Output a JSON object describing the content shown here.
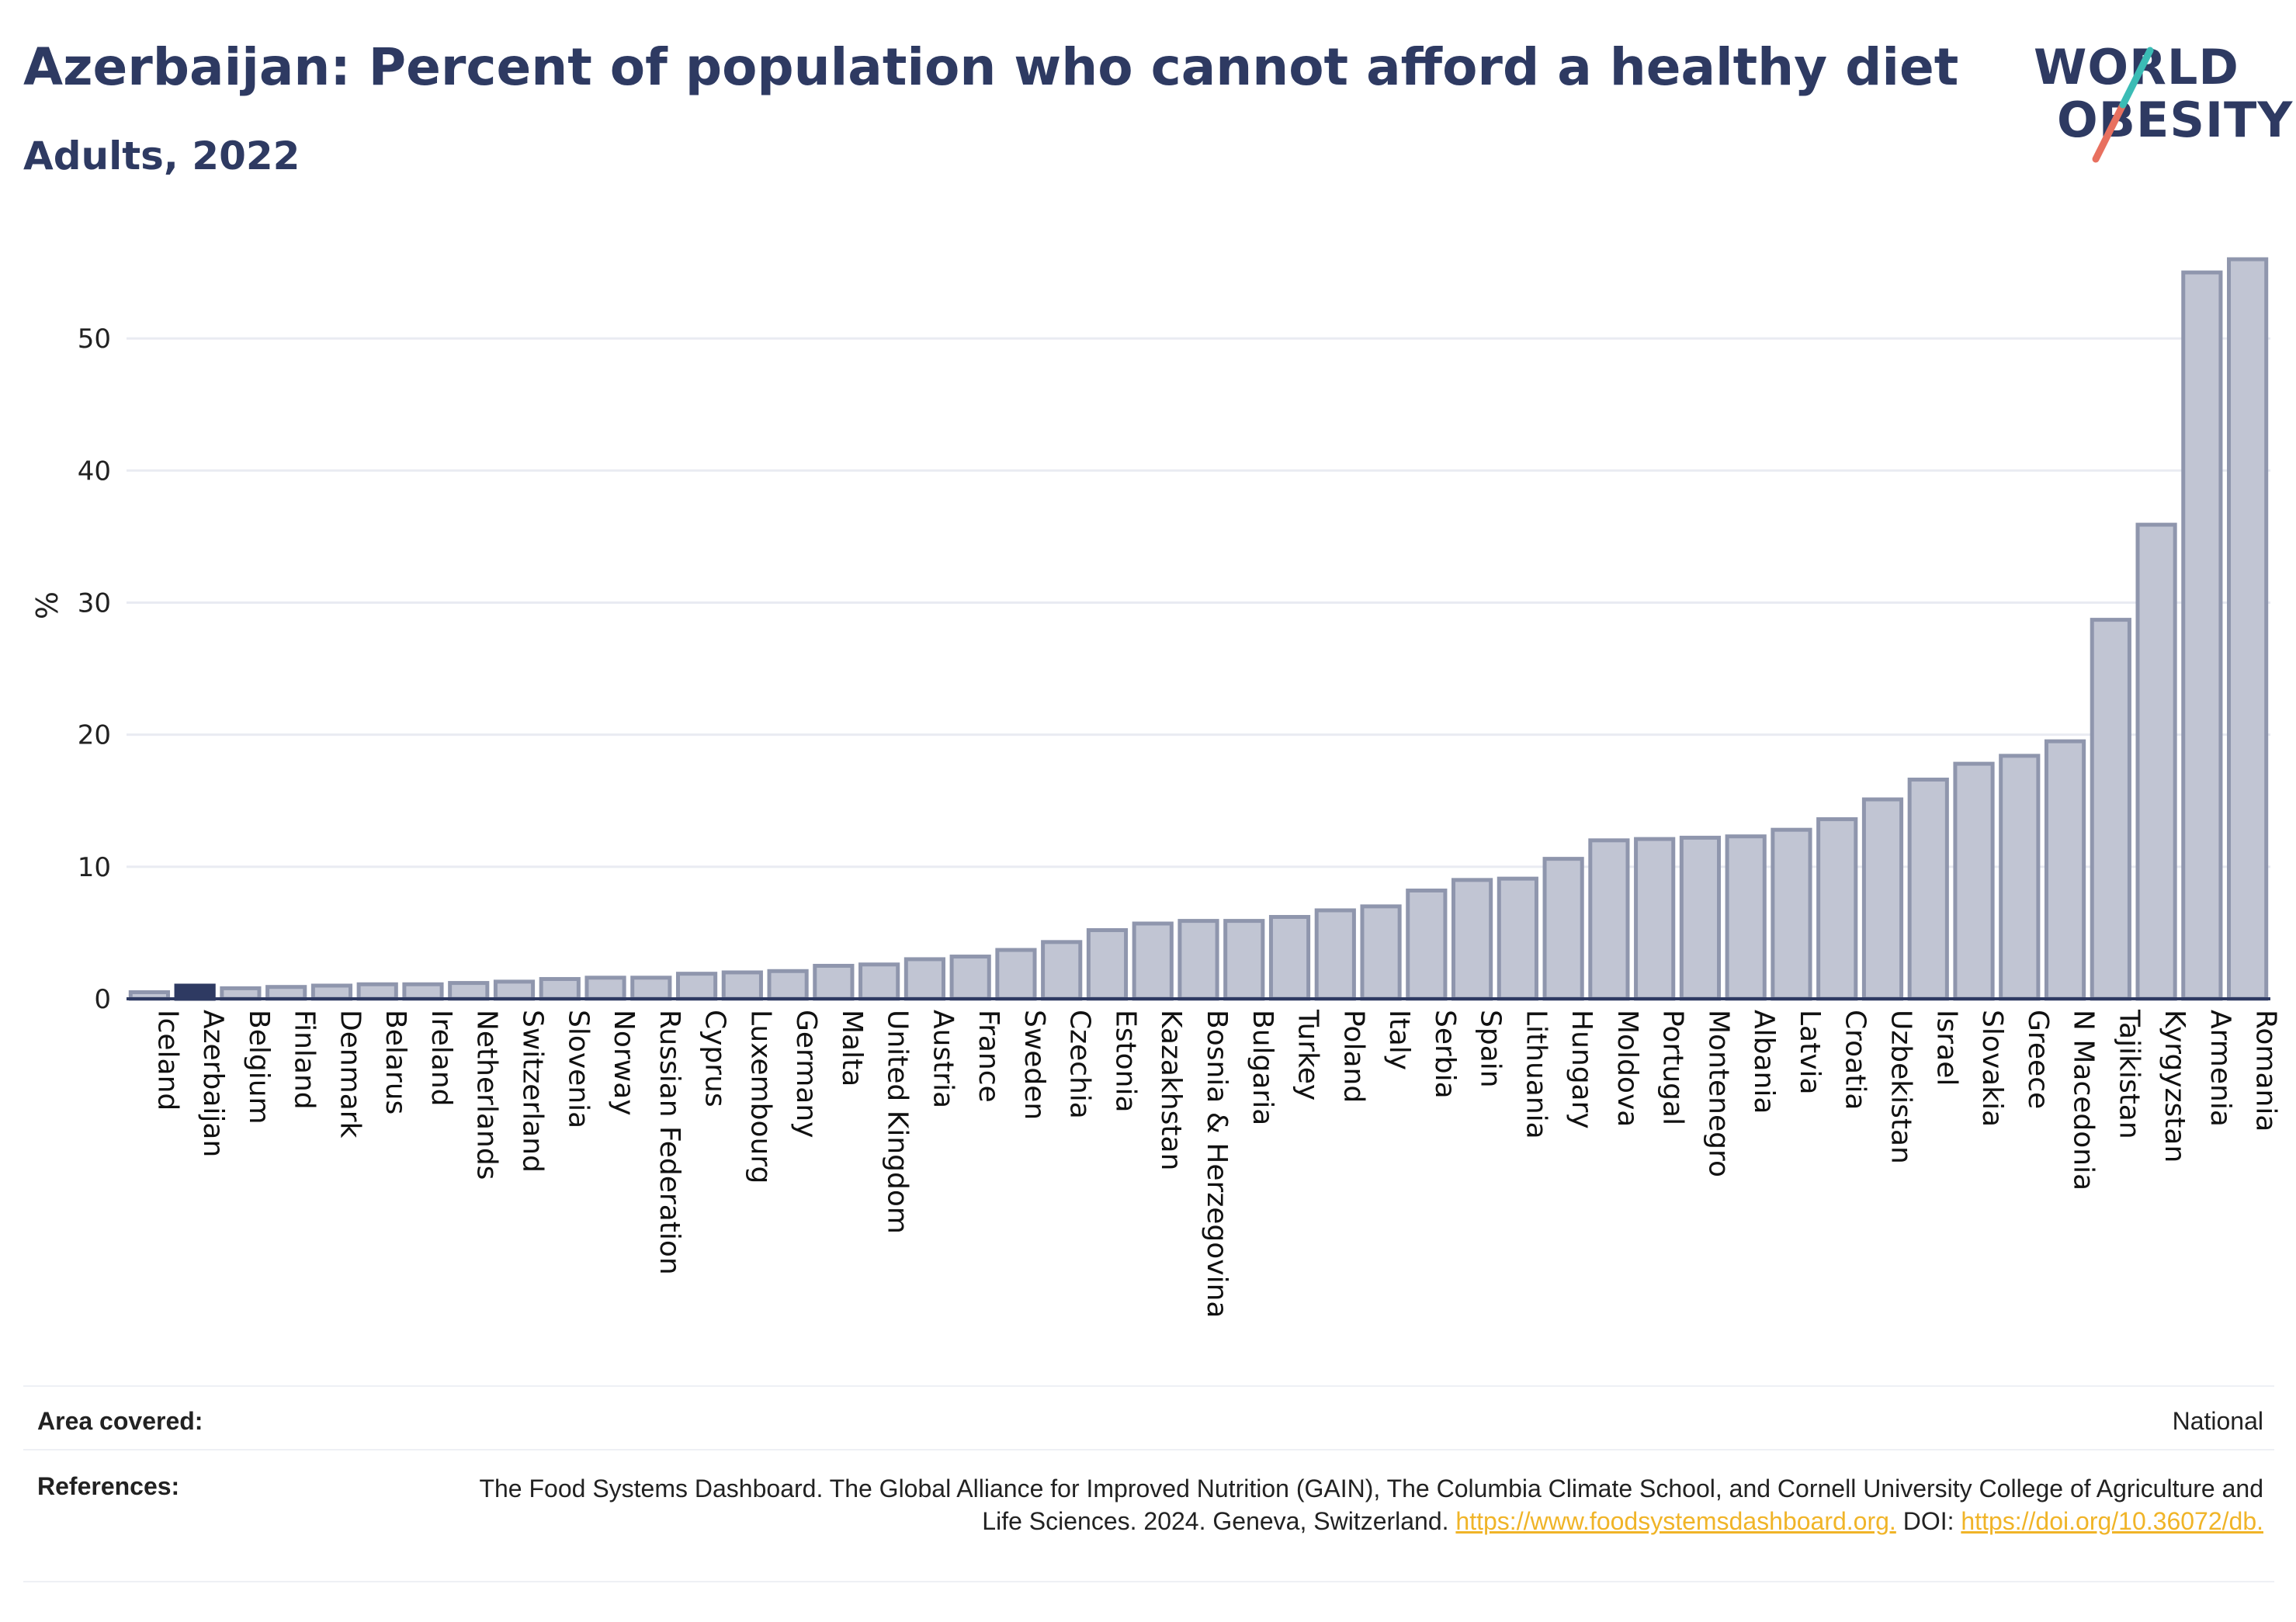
{
  "header": {
    "title": "Azerbaijan: Percent of population who cannot afford a healthy diet",
    "subtitle": "Adults, 2022"
  },
  "logo": {
    "line1": "WORLD",
    "line2": "OBESITY"
  },
  "colors": {
    "bar_default": "#c1c5d3",
    "bar_border": "#8f96ad",
    "bar_highlight": "#2e3a62",
    "text": "#2e3a62",
    "link": "#f0b428"
  },
  "chart_data": {
    "type": "bar",
    "ylabel": "%",
    "ylim": [
      0,
      58
    ],
    "yticks": [
      0,
      10,
      20,
      30,
      40,
      50
    ],
    "grid": true,
    "highlight": "Azerbaijan",
    "categories": [
      "Iceland",
      "Azerbaijan",
      "Belgium",
      "Finland",
      "Denmark",
      "Belarus",
      "Ireland",
      "Netherlands",
      "Switzerland",
      "Slovenia",
      "Norway",
      "Russian Federation",
      "Cyprus",
      "Luxembourg",
      "Germany",
      "Malta",
      "United Kingdom",
      "Austria",
      "France",
      "Sweden",
      "Czechia",
      "Estonia",
      "Kazakhstan",
      "Bosnia & Herzegovina",
      "Bulgaria",
      "Turkey",
      "Poland",
      "Italy",
      "Serbia",
      "Spain",
      "Lithuania",
      "Hungary",
      "Moldova",
      "Portugal",
      "Montenegro",
      "Albania",
      "Latvia",
      "Croatia",
      "Uzbekistan",
      "Israel",
      "Slovakia",
      "Greece",
      "N Macedonia",
      "Tajikistan",
      "Kyrgyzstan",
      "Armenia",
      "Romania"
    ],
    "values": [
      0.5,
      1.0,
      0.8,
      0.9,
      1.0,
      1.1,
      1.1,
      1.2,
      1.3,
      1.5,
      1.6,
      1.6,
      1.9,
      2.0,
      2.1,
      2.5,
      2.6,
      3.0,
      3.2,
      3.7,
      4.3,
      5.2,
      5.7,
      5.9,
      5.9,
      6.2,
      6.7,
      7.0,
      8.2,
      9.0,
      9.1,
      10.6,
      12.0,
      12.1,
      12.2,
      12.3,
      12.8,
      13.6,
      15.1,
      16.6,
      17.8,
      18.4,
      19.5,
      28.7,
      35.9,
      55.0,
      56.0
    ]
  },
  "footer": {
    "area_label": "Area covered:",
    "area_value": "National",
    "references_label": "References:",
    "references_text": "The Food Systems Dashboard. The Global Alliance for Improved Nutrition (GAIN), The Columbia Climate School, and Cornell University College of Agriculture and Life Sciences. 2024. Geneva, Switzerland.",
    "references_link1": "https://www.foodsystemsdashboard.org.",
    "references_doi_label": "DOI:",
    "references_link2": "https://doi.org/10.36072/db."
  }
}
